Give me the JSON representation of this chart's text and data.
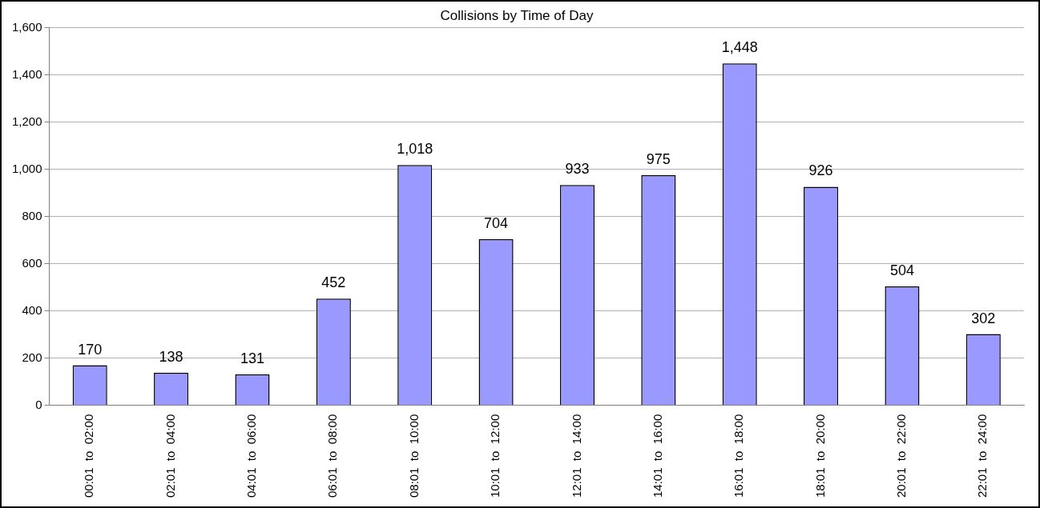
{
  "chart_data": {
    "type": "bar",
    "title": "Collisions by Time of Day",
    "categories": [
      "00:01  to  02:00",
      "02:01  to  04:00",
      "04:01  to  06:00",
      "06:01  to  08:00",
      "08:01  to  10:00",
      "10:01  to  12:00",
      "12:01  to  14:00",
      "14:01  to  16:00",
      "16:01  to  18:00",
      "18:01  to  20:00",
      "20:01  to  22:00",
      "22:01  to  24:00"
    ],
    "values": [
      170,
      138,
      131,
      452,
      1018,
      704,
      933,
      975,
      1448,
      926,
      504,
      302
    ],
    "value_labels": [
      "170",
      "138",
      "131",
      "452",
      "1,018",
      "704",
      "933",
      "975",
      "1,448",
      "926",
      "504",
      "302"
    ],
    "color": "#9999ff",
    "ylim": [
      0,
      1600
    ],
    "yticks": [
      0,
      200,
      400,
      600,
      800,
      {
        "value": 1000,
        "label": "1,000"
      },
      {
        "value": 1200,
        "label": "1,200"
      },
      {
        "value": 1400,
        "label": "1,400"
      },
      {
        "value": 1600,
        "label": "1,600"
      }
    ],
    "grid": "y",
    "legend": false
  }
}
